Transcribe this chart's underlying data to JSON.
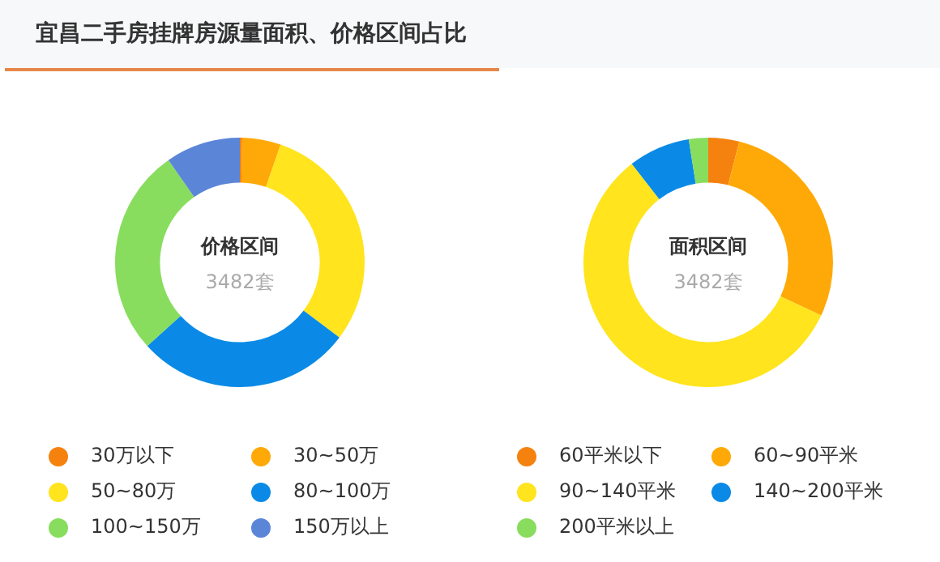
{
  "chart_data": [
    {
      "type": "other",
      "title": "宜昌二手房挂牌房源量面积、价格区间占比"
    },
    {
      "type": "donut",
      "title": "价格区间",
      "annotations": [
        "3482套"
      ],
      "legend": "bottom",
      "categories": [
        "30万以下",
        "30~50万",
        "50~80万",
        "80~100万",
        "100~150万",
        "150万以上"
      ],
      "values": [
        0.3,
        5,
        30,
        28,
        27,
        9.7
      ],
      "colors": [
        "#f5820f",
        "#ffa908",
        "#ffe41e",
        "#0a8ae6",
        "#88dd5e",
        "#5b86d8"
      ]
    },
    {
      "type": "donut",
      "title": "面积区间",
      "annotations": [
        "3482套"
      ],
      "legend": "bottom",
      "categories": [
        "60平米以下",
        "60~90平米",
        "90~140平米",
        "140~200平米",
        "200平米以上"
      ],
      "values": [
        4,
        28,
        57.5,
        8,
        2.5
      ],
      "colors": [
        "#f5820f",
        "#ffa908",
        "#ffe41e",
        "#0a8ae6",
        "#88dd5e"
      ]
    }
  ]
}
